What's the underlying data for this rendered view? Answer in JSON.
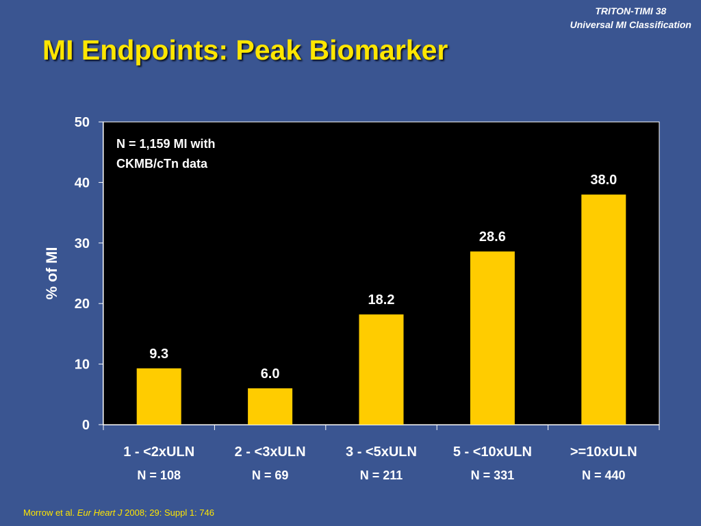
{
  "header": {
    "source_line1": "TRITON-TIMI 38",
    "source_line2": "Universal MI Classification",
    "title": "MI Endpoints: Peak Biomarker"
  },
  "footer": {
    "authors": "Morrow et al.",
    "journal": "Eur Heart J",
    "details": "2008; 29: Suppl 1: 746"
  },
  "colors": {
    "background": "#3a5591",
    "plot_area": "#000000",
    "bar": "#ffcc00",
    "title": "#ffe600",
    "text": "#ffffff"
  },
  "chart_data": {
    "type": "bar",
    "title": "",
    "xlabel": "",
    "ylabel": "% of MI",
    "ylim": [
      0,
      50
    ],
    "yticks": [
      0,
      10,
      20,
      30,
      40,
      50
    ],
    "grid": false,
    "annotation": [
      "N = 1,159 MI with",
      "CKMB/cTn data"
    ],
    "categories": [
      "1 - <2xULN",
      "2 - <3xULN",
      "3 - <5xULN",
      "5 - <10xULN",
      ">=10xULN"
    ],
    "category_n": [
      "N = 108",
      "N = 69",
      "N = 211",
      "N = 331",
      "N = 440"
    ],
    "values": [
      9.3,
      6.0,
      18.2,
      28.6,
      38.0
    ],
    "value_labels": [
      "9.3",
      "6.0",
      "18.2",
      "28.6",
      "38.0"
    ]
  }
}
